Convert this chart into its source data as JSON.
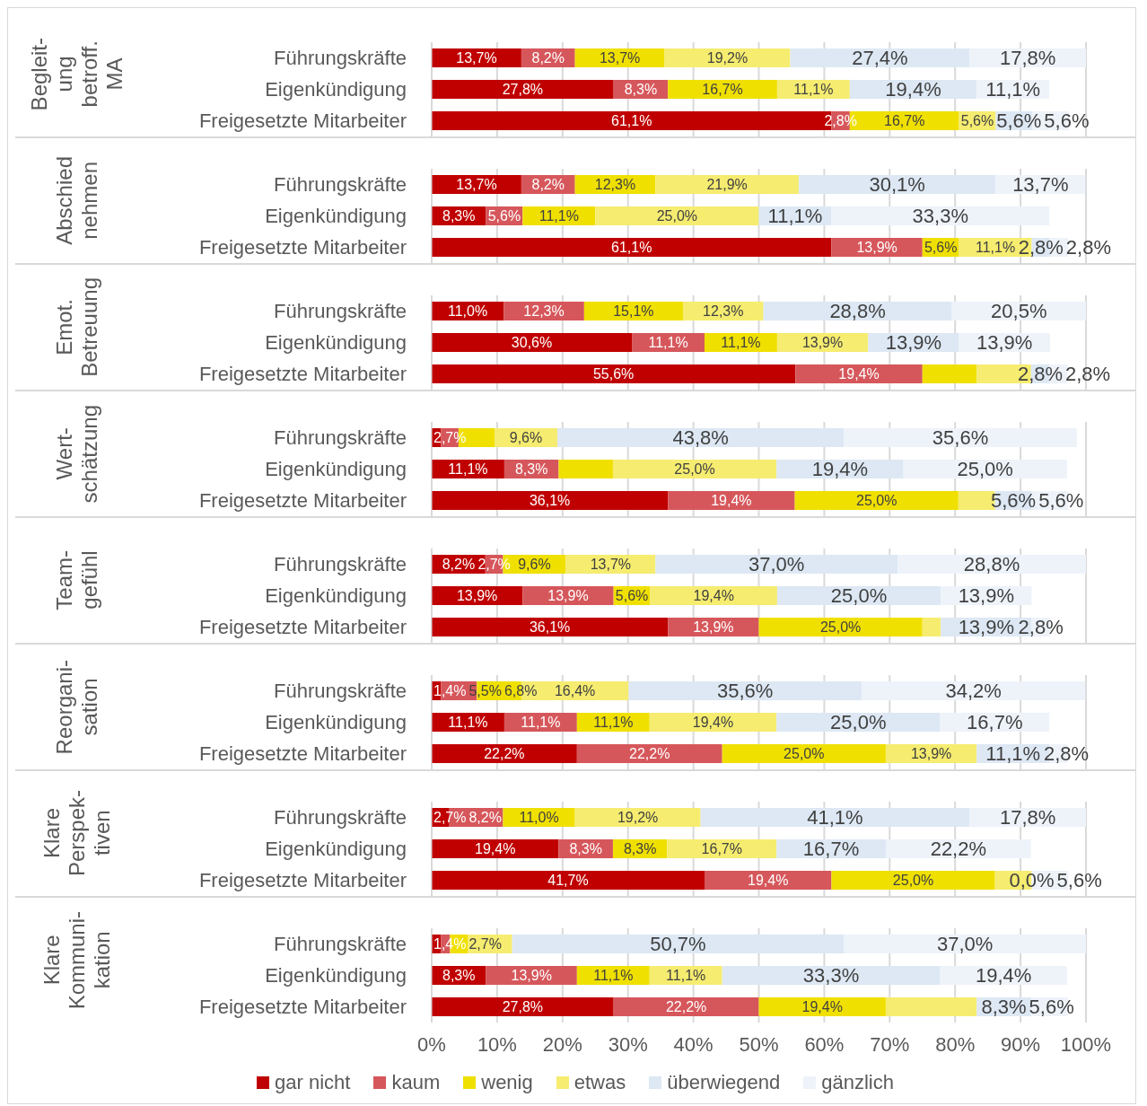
{
  "chart_data": [
    {
      "type": "bar",
      "orientation": "horizontal",
      "stacked": true,
      "title": "Begleit-\nung\nbetroff.\nMA",
      "categories": [
        "Führungskräfte",
        "Eigenkündigung",
        "Freigesetzte Mitarbeiter"
      ],
      "xlim": [
        0,
        100
      ],
      "xticks": [
        {
          "value": 0,
          "label": null
        },
        {
          "value": 10,
          "label": null
        },
        {
          "value": 20,
          "label": null
        },
        {
          "value": 30,
          "label": null
        },
        {
          "value": 40,
          "label": null
        },
        {
          "value": 50,
          "label": null
        },
        {
          "value": 60,
          "label": null
        },
        {
          "value": 70,
          "label": null
        },
        {
          "value": 80,
          "label": null
        },
        {
          "value": 90,
          "label": null
        },
        {
          "value": 100,
          "label": null
        }
      ],
      "grid": "x",
      "tick_labels": "y",
      "legend": false,
      "series": [
        {
          "color": "#c00000",
          "values": [
            13.7,
            27.8,
            61.1
          ],
          "value_labels": [
            "13,7%",
            "27,8%",
            "61,1%"
          ]
        },
        {
          "color": "#d6575b",
          "values": [
            8.2,
            8.3,
            2.8
          ],
          "value_labels": [
            "8,2%",
            "8,3%",
            "2,8%"
          ]
        },
        {
          "color": "#f0e000",
          "values": [
            13.7,
            16.7,
            16.7
          ],
          "value_labels": [
            "13,7%",
            "16,7%",
            "16,7%"
          ]
        },
        {
          "color": "#f5ec70",
          "values": [
            19.2,
            11.1,
            5.6
          ],
          "value_labels": [
            "19,2%",
            "11,1%",
            "5,6%"
          ]
        },
        {
          "color": "#dde8f4",
          "values": [
            27.4,
            19.4,
            5.6
          ],
          "value_labels": [
            "27,4%",
            "19,4%",
            "5,6%"
          ]
        },
        {
          "color": "#eef3fa",
          "values": [
            17.8,
            11.1,
            5.6
          ],
          "value_labels": [
            "17,8%",
            "11,1%",
            "5,6%"
          ]
        }
      ]
    },
    {
      "type": "bar",
      "orientation": "horizontal",
      "stacked": true,
      "title": "Abschied\nnehmen",
      "categories": [
        "Führungskräfte",
        "Eigenkündigung",
        "Freigesetzte Mitarbeiter"
      ],
      "xlim": [
        0,
        100
      ],
      "xticks": [
        {
          "value": 0,
          "label": null
        },
        {
          "value": 10,
          "label": null
        },
        {
          "value": 20,
          "label": null
        },
        {
          "value": 30,
          "label": null
        },
        {
          "value": 40,
          "label": null
        },
        {
          "value": 50,
          "label": null
        },
        {
          "value": 60,
          "label": null
        },
        {
          "value": 70,
          "label": null
        },
        {
          "value": 80,
          "label": null
        },
        {
          "value": 90,
          "label": null
        },
        {
          "value": 100,
          "label": null
        }
      ],
      "grid": "x",
      "tick_labels": "y",
      "legend": false,
      "series": [
        {
          "color": "#c00000",
          "values": [
            13.7,
            8.3,
            61.1
          ],
          "value_labels": [
            "13,7%",
            "8,3%",
            "61,1%"
          ]
        },
        {
          "color": "#d6575b",
          "values": [
            8.2,
            5.6,
            13.9
          ],
          "value_labels": [
            "8,2%",
            "5,6%",
            "13,9%"
          ]
        },
        {
          "color": "#f0e000",
          "values": [
            12.3,
            11.1,
            5.6
          ],
          "value_labels": [
            "12,3%",
            "11,1%",
            "5,6%"
          ]
        },
        {
          "color": "#f5ec70",
          "values": [
            21.9,
            25.0,
            11.1
          ],
          "value_labels": [
            "21,9%",
            "25,0%",
            "11,1%"
          ]
        },
        {
          "color": "#dde8f4",
          "values": [
            30.1,
            11.1,
            2.8
          ],
          "value_labels": [
            "30,1%",
            "11,1%",
            "2,8%"
          ]
        },
        {
          "color": "#eef3fa",
          "values": [
            13.7,
            33.3,
            2.8
          ],
          "value_labels": [
            "13,7%",
            "33,3%",
            "2,8%"
          ]
        }
      ]
    },
    {
      "type": "bar",
      "orientation": "horizontal",
      "stacked": true,
      "title": "Emot.\nBetreuung",
      "categories": [
        "Führungskräfte",
        "Eigenkündigung",
        "Freigesetzte Mitarbeiter"
      ],
      "xlim": [
        0,
        100
      ],
      "xticks": [
        {
          "value": 0,
          "label": null
        },
        {
          "value": 10,
          "label": null
        },
        {
          "value": 20,
          "label": null
        },
        {
          "value": 30,
          "label": null
        },
        {
          "value": 40,
          "label": null
        },
        {
          "value": 50,
          "label": null
        },
        {
          "value": 60,
          "label": null
        },
        {
          "value": 70,
          "label": null
        },
        {
          "value": 80,
          "label": null
        },
        {
          "value": 90,
          "label": null
        },
        {
          "value": 100,
          "label": null
        }
      ],
      "grid": "x",
      "tick_labels": "y",
      "legend": false,
      "series": [
        {
          "color": "#c00000",
          "values": [
            11.0,
            30.6,
            55.6
          ],
          "value_labels": [
            "11,0%",
            "30,6%",
            "55,6%"
          ]
        },
        {
          "color": "#d6575b",
          "values": [
            12.3,
            11.1,
            19.4
          ],
          "value_labels": [
            "12,3%",
            "11,1%",
            "19,4%"
          ]
        },
        {
          "color": "#f0e000",
          "values": [
            15.1,
            11.1,
            8.3
          ],
          "value_labels": [
            "15,1%",
            "11,1%",
            null
          ]
        },
        {
          "color": "#f5ec70",
          "values": [
            12.3,
            13.9,
            8.3
          ],
          "value_labels": [
            "12,3%",
            "13,9%",
            null
          ]
        },
        {
          "color": "#dde8f4",
          "values": [
            28.8,
            13.9,
            2.8
          ],
          "value_labels": [
            "28,8%",
            "13,9%",
            "2,8%"
          ]
        },
        {
          "color": "#eef3fa",
          "values": [
            20.5,
            13.9,
            2.8
          ],
          "value_labels": [
            "20,5%",
            "13,9%",
            "2,8%"
          ]
        }
      ]
    },
    {
      "type": "bar",
      "orientation": "horizontal",
      "stacked": true,
      "title": "Wert-\nschätzung",
      "categories": [
        "Führungskräfte",
        "Eigenkündigung",
        "Freigesetzte Mitarbeiter"
      ],
      "xlim": [
        0,
        100
      ],
      "xticks": [
        {
          "value": 0,
          "label": null
        },
        {
          "value": 10,
          "label": null
        },
        {
          "value": 20,
          "label": null
        },
        {
          "value": 30,
          "label": null
        },
        {
          "value": 40,
          "label": null
        },
        {
          "value": 50,
          "label": null
        },
        {
          "value": 60,
          "label": null
        },
        {
          "value": 70,
          "label": null
        },
        {
          "value": 80,
          "label": null
        },
        {
          "value": 90,
          "label": null
        },
        {
          "value": 100,
          "label": null
        }
      ],
      "grid": "x",
      "tick_labels": "y",
      "legend": false,
      "series": [
        {
          "color": "#c00000",
          "values": [
            1.4,
            11.1,
            36.1
          ],
          "value_labels": [
            null,
            "11,1%",
            "36,1%"
          ]
        },
        {
          "color": "#d6575b",
          "values": [
            2.7,
            8.3,
            19.4
          ],
          "value_labels": [
            "2,7%",
            "8,3%",
            "19,4%"
          ]
        },
        {
          "color": "#f0e000",
          "values": [
            5.5,
            8.3,
            25.0
          ],
          "value_labels": [
            null,
            null,
            "25,0%"
          ]
        },
        {
          "color": "#f5ec70",
          "values": [
            9.6,
            25.0,
            5.6
          ],
          "value_labels": [
            "9,6%",
            "25,0%",
            null
          ]
        },
        {
          "color": "#dde8f4",
          "values": [
            43.8,
            19.4,
            5.6
          ],
          "value_labels": [
            "43,8%",
            "19,4%",
            "5,6%"
          ]
        },
        {
          "color": "#eef3fa",
          "values": [
            35.6,
            25.0,
            5.6
          ],
          "value_labels": [
            "35,6%",
            "25,0%",
            "5,6%"
          ]
        }
      ]
    },
    {
      "type": "bar",
      "orientation": "horizontal",
      "stacked": true,
      "title": "Team-\ngefühl",
      "categories": [
        "Führungskräfte",
        "Eigenkündigung",
        "Freigesetzte Mitarbeiter"
      ],
      "xlim": [
        0,
        100
      ],
      "xticks": [
        {
          "value": 0,
          "label": null
        },
        {
          "value": 10,
          "label": null
        },
        {
          "value": 20,
          "label": null
        },
        {
          "value": 30,
          "label": null
        },
        {
          "value": 40,
          "label": null
        },
        {
          "value": 50,
          "label": null
        },
        {
          "value": 60,
          "label": null
        },
        {
          "value": 70,
          "label": null
        },
        {
          "value": 80,
          "label": null
        },
        {
          "value": 90,
          "label": null
        },
        {
          "value": 100,
          "label": null
        }
      ],
      "grid": "x",
      "tick_labels": "y",
      "legend": false,
      "series": [
        {
          "color": "#c00000",
          "values": [
            8.2,
            13.9,
            36.1
          ],
          "value_labels": [
            "8,2%",
            "13,9%",
            "36,1%"
          ]
        },
        {
          "color": "#d6575b",
          "values": [
            2.7,
            13.9,
            13.9
          ],
          "value_labels": [
            "2,7%",
            "13,9%",
            "13,9%"
          ]
        },
        {
          "color": "#f0e000",
          "values": [
            9.6,
            5.6,
            25.0
          ],
          "value_labels": [
            "9,6%",
            "5,6%",
            "25,0%"
          ]
        },
        {
          "color": "#f5ec70",
          "values": [
            13.7,
            19.4,
            2.8
          ],
          "value_labels": [
            "13,7%",
            "19,4%",
            null
          ]
        },
        {
          "color": "#dde8f4",
          "values": [
            37.0,
            25.0,
            13.9
          ],
          "value_labels": [
            "37,0%",
            "25,0%",
            "13,9%"
          ]
        },
        {
          "color": "#eef3fa",
          "values": [
            28.8,
            13.9,
            2.8
          ],
          "value_labels": [
            "28,8%",
            "13,9%",
            "2,8%"
          ]
        }
      ]
    },
    {
      "type": "bar",
      "orientation": "horizontal",
      "stacked": true,
      "title": "Reorgani-\nsation",
      "categories": [
        "Führungskräfte",
        "Eigenkündigung",
        "Freigesetzte Mitarbeiter"
      ],
      "xlim": [
        0,
        100
      ],
      "xticks": [
        {
          "value": 0,
          "label": null
        },
        {
          "value": 10,
          "label": null
        },
        {
          "value": 20,
          "label": null
        },
        {
          "value": 30,
          "label": null
        },
        {
          "value": 40,
          "label": null
        },
        {
          "value": 50,
          "label": null
        },
        {
          "value": 60,
          "label": null
        },
        {
          "value": 70,
          "label": null
        },
        {
          "value": 80,
          "label": null
        },
        {
          "value": 90,
          "label": null
        },
        {
          "value": 100,
          "label": null
        }
      ],
      "grid": "x",
      "tick_labels": "y",
      "legend": false,
      "series": [
        {
          "color": "#c00000",
          "values": [
            1.4,
            11.1,
            22.2
          ],
          "value_labels": [
            "1,4%",
            "11,1%",
            "22,2%"
          ]
        },
        {
          "color": "#d6575b",
          "values": [
            5.5,
            11.1,
            22.2
          ],
          "value_labels": [
            "5,5%",
            "11,1%",
            "22,2%"
          ]
        },
        {
          "color": "#f0e000",
          "values": [
            6.8,
            11.1,
            25.0
          ],
          "value_labels": [
            "6,8%",
            "11,1%",
            "25,0%"
          ]
        },
        {
          "color": "#f5ec70",
          "values": [
            16.4,
            19.4,
            13.9
          ],
          "value_labels": [
            "16,4%",
            "19,4%",
            "13,9%"
          ]
        },
        {
          "color": "#dde8f4",
          "values": [
            35.6,
            25.0,
            11.1
          ],
          "value_labels": [
            "35,6%",
            "25,0%",
            "11,1%"
          ]
        },
        {
          "color": "#eef3fa",
          "values": [
            34.2,
            16.7,
            2.8
          ],
          "value_labels": [
            "34,2%",
            "16,7%",
            "2,8%"
          ]
        }
      ]
    },
    {
      "type": "bar",
      "orientation": "horizontal",
      "stacked": true,
      "title": "Klare\nPerspek-\ntiven",
      "categories": [
        "Führungskräfte",
        "Eigenkündigung",
        "Freigesetzte Mitarbeiter"
      ],
      "xlim": [
        0,
        100
      ],
      "xticks": [
        {
          "value": 0,
          "label": null
        },
        {
          "value": 10,
          "label": null
        },
        {
          "value": 20,
          "label": null
        },
        {
          "value": 30,
          "label": null
        },
        {
          "value": 40,
          "label": null
        },
        {
          "value": 50,
          "label": null
        },
        {
          "value": 60,
          "label": null
        },
        {
          "value": 70,
          "label": null
        },
        {
          "value": 80,
          "label": null
        },
        {
          "value": 90,
          "label": null
        },
        {
          "value": 100,
          "label": null
        }
      ],
      "grid": "x",
      "tick_labels": "y",
      "legend": false,
      "series": [
        {
          "color": "#c00000",
          "values": [
            2.7,
            19.4,
            41.7
          ],
          "value_labels": [
            "2,7%",
            "19,4%",
            "41,7%"
          ]
        },
        {
          "color": "#d6575b",
          "values": [
            8.2,
            8.3,
            19.4
          ],
          "value_labels": [
            "8,2%",
            "8,3%",
            "19,4%"
          ]
        },
        {
          "color": "#f0e000",
          "values": [
            11.0,
            8.3,
            25.0
          ],
          "value_labels": [
            "11,0%",
            "8,3%",
            "25,0%"
          ]
        },
        {
          "color": "#f5ec70",
          "values": [
            19.2,
            16.7,
            5.6
          ],
          "value_labels": [
            "19,2%",
            "16,7%",
            null
          ]
        },
        {
          "color": "#dde8f4",
          "values": [
            41.1,
            16.7,
            0.0
          ],
          "value_labels": [
            "41,1%",
            "16,7%",
            "0,0%"
          ]
        },
        {
          "color": "#eef3fa",
          "values": [
            17.8,
            22.2,
            5.6
          ],
          "value_labels": [
            "17,8%",
            "22,2%",
            "5,6%"
          ]
        }
      ]
    },
    {
      "type": "bar",
      "orientation": "horizontal",
      "stacked": true,
      "title": "Klare\nKommuni-\nkation",
      "categories": [
        "Führungskräfte",
        "Eigenkündigung",
        "Freigesetzte Mitarbeiter"
      ],
      "xlim": [
        0,
        100
      ],
      "xticks": [
        {
          "value": 0,
          "label": "0%"
        },
        {
          "value": 10,
          "label": "10%"
        },
        {
          "value": 20,
          "label": "20%"
        },
        {
          "value": 30,
          "label": "30%"
        },
        {
          "value": 40,
          "label": "40%"
        },
        {
          "value": 50,
          "label": "50%"
        },
        {
          "value": 60,
          "label": "60%"
        },
        {
          "value": 70,
          "label": "70%"
        },
        {
          "value": 80,
          "label": "80%"
        },
        {
          "value": 90,
          "label": "90%"
        },
        {
          "value": 100,
          "label": "100%"
        }
      ],
      "grid": "x",
      "legend": "bottom",
      "series": [
        {
          "name": "gar nicht",
          "color": "#c00000",
          "values": [
            1.4,
            8.3,
            27.8
          ],
          "value_labels": [
            null,
            "8,3%",
            "27,8%"
          ]
        },
        {
          "name": "kaum",
          "color": "#d6575b",
          "values": [
            1.4,
            13.9,
            22.2
          ],
          "value_labels": [
            "1,4%",
            "13,9%",
            "22,2%"
          ]
        },
        {
          "name": "wenig",
          "color": "#f0e000",
          "values": [
            2.7,
            11.1,
            19.4
          ],
          "value_labels": [
            "2,7%",
            "11,1%",
            "19,4%"
          ]
        },
        {
          "name": "etwas",
          "color": "#f5ec70",
          "values": [
            6.8,
            11.1,
            13.9
          ],
          "value_labels": [
            null,
            "11,1%",
            null
          ]
        },
        {
          "name": "überwiegend",
          "color": "#dde8f4",
          "values": [
            50.7,
            33.3,
            8.3
          ],
          "value_labels": [
            "50,7%",
            "33,3%",
            "8,3%"
          ]
        },
        {
          "name": "gänzlich",
          "color": "#eef3fa",
          "values": [
            37.0,
            19.4,
            5.6
          ],
          "value_labels": [
            "37,0%",
            "19,4%",
            "5,6%"
          ]
        }
      ]
    }
  ]
}
